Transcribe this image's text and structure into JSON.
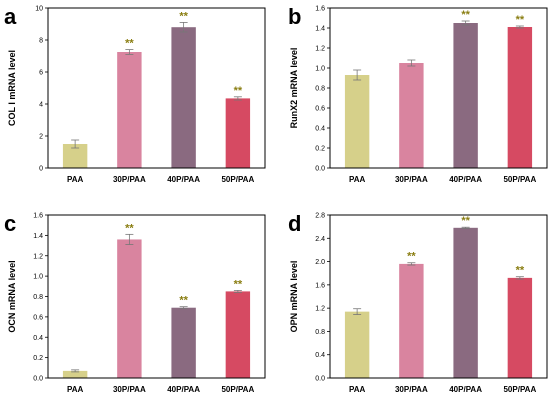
{
  "chart_data": [
    {
      "type": "bar",
      "panel": "a",
      "ylabel": "COL I mRNA level",
      "ylim": [
        0,
        10
      ],
      "yticks": [
        0,
        2,
        4,
        6,
        8,
        10
      ],
      "tick_decimals": 0,
      "categories": [
        "PAA",
        "30P/PAA",
        "40P/PAA",
        "50P/PAA"
      ],
      "values": [
        1.5,
        7.25,
        8.8,
        4.35
      ],
      "errors": [
        0.25,
        0.15,
        0.3,
        0.1
      ],
      "annotations": [
        "",
        "**",
        "**",
        "**"
      ]
    },
    {
      "type": "bar",
      "panel": "b",
      "ylabel": "RunX2 mRNA level",
      "ylim": [
        0,
        1.6
      ],
      "yticks": [
        0.0,
        0.2,
        0.4,
        0.6,
        0.8,
        1.0,
        1.2,
        1.4,
        1.6
      ],
      "tick_decimals": 1,
      "categories": [
        "PAA",
        "30P/PAA",
        "40P/PAA",
        "50P/PAA"
      ],
      "values": [
        0.93,
        1.05,
        1.45,
        1.41
      ],
      "errors": [
        0.05,
        0.03,
        0.02,
        0.01
      ],
      "annotations": [
        "",
        "",
        "**",
        "**"
      ]
    },
    {
      "type": "bar",
      "panel": "c",
      "ylabel": "OCN mRNA level",
      "ylim": [
        0,
        1.6
      ],
      "yticks": [
        0.0,
        0.2,
        0.4,
        0.6,
        0.8,
        1.0,
        1.2,
        1.4,
        1.6
      ],
      "tick_decimals": 1,
      "categories": [
        "PAA",
        "30P/PAA",
        "40P/PAA",
        "50P/PAA"
      ],
      "values": [
        0.07,
        1.36,
        0.69,
        0.85
      ],
      "errors": [
        0.01,
        0.05,
        0.01,
        0.01
      ],
      "annotations": [
        "",
        "**",
        "**",
        "**"
      ]
    },
    {
      "type": "bar",
      "panel": "d",
      "ylabel": "OPN mRNA level",
      "ylim": [
        0,
        2.8
      ],
      "yticks": [
        0.0,
        0.4,
        0.8,
        1.2,
        1.6,
        2.0,
        2.4,
        2.8
      ],
      "tick_decimals": 1,
      "categories": [
        "PAA",
        "30P/PAA",
        "40P/PAA",
        "50P/PAA"
      ],
      "values": [
        1.14,
        1.96,
        2.58,
        1.72
      ],
      "errors": [
        0.05,
        0.02,
        0.01,
        0.02
      ],
      "annotations": [
        "",
        "**",
        "**",
        "**"
      ]
    }
  ],
  "bar_colors": [
    "#d6d08a",
    "#d9849f",
    "#8a6a80",
    "#d64a62"
  ]
}
